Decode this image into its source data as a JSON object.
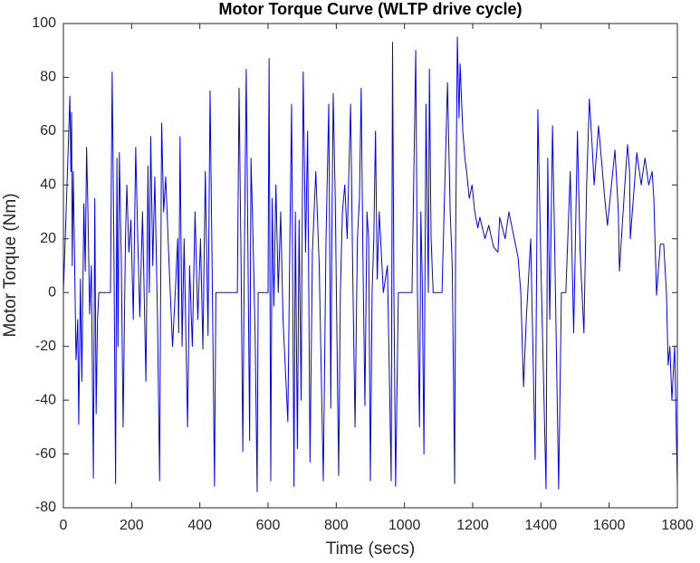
{
  "chart_data": {
    "type": "line",
    "title": "Motor Torque Curve (WLTP drive cycle)",
    "x_label": "Time (secs)",
    "y_label": "Motor Torque (Nm)",
    "color": "#0000ff",
    "xlim": [
      0,
      1800
    ],
    "xticks": [
      0,
      200,
      400,
      600,
      800,
      1000,
      1200,
      1400,
      1600,
      1800
    ],
    "ylim": [
      -80,
      100
    ],
    "yticks": [
      -80,
      -60,
      -40,
      -20,
      0,
      20,
      40,
      60,
      80,
      100
    ],
    "grid": false,
    "x": [
      0,
      8,
      19,
      22,
      24,
      26,
      29,
      33,
      37,
      42,
      45,
      50,
      54,
      60,
      64,
      68,
      72,
      77,
      82,
      88,
      92,
      96,
      100,
      104,
      138,
      143,
      148,
      153,
      157,
      160,
      164,
      170,
      175,
      182,
      186,
      192,
      198,
      205,
      212,
      218,
      224,
      232,
      242,
      248,
      252,
      256,
      262,
      268,
      276,
      282,
      288,
      294,
      300,
      310,
      320,
      328,
      335,
      338,
      342,
      348,
      354,
      364,
      370,
      378,
      386,
      394,
      402,
      409,
      416,
      424,
      430,
      436,
      443,
      447,
      510,
      515,
      521,
      526,
      531,
      536,
      540,
      546,
      550,
      556,
      562,
      568,
      571,
      600,
      603,
      608,
      612,
      617,
      623,
      630,
      637,
      644,
      658,
      664,
      669,
      676,
      680,
      686,
      691,
      697,
      703,
      710,
      716,
      723,
      730,
      740,
      750,
      762,
      770,
      778,
      784,
      787,
      791,
      797,
      807,
      812,
      818,
      825,
      832,
      842,
      848,
      855,
      862,
      868,
      873,
      878,
      884,
      890,
      895,
      900,
      905,
      910,
      915,
      920,
      926,
      938,
      950,
      961,
      965,
      969,
      974,
      982,
      1022,
      1033,
      1038,
      1044,
      1048,
      1052,
      1057,
      1063,
      1067,
      1070,
      1073,
      1078,
      1084,
      1110,
      1126,
      1134,
      1140,
      1147,
      1150,
      1155,
      1160,
      1163,
      1171,
      1177,
      1182,
      1190,
      1198,
      1206,
      1215,
      1221,
      1236,
      1247,
      1261,
      1274,
      1279,
      1295,
      1306,
      1322,
      1333,
      1341,
      1349,
      1357,
      1370,
      1383,
      1391,
      1400,
      1415,
      1420,
      1426,
      1434,
      1440,
      1452,
      1460,
      1473,
      1486,
      1496,
      1507,
      1515,
      1526,
      1534,
      1542,
      1550,
      1556,
      1569,
      1587,
      1595,
      1617,
      1627,
      1630,
      1646,
      1654,
      1660,
      1662,
      1681,
      1694,
      1705,
      1716,
      1726,
      1731,
      1739,
      1750,
      1760,
      1768,
      1773,
      1778,
      1784,
      1792,
      1800
    ],
    "values": [
      0,
      30,
      73,
      45,
      67,
      10,
      45,
      10,
      -25,
      -10,
      -49,
      5,
      -33,
      33,
      8,
      54,
      30,
      -8,
      10,
      -69,
      35,
      -45,
      -10,
      0,
      0,
      82,
      18,
      -71,
      50,
      -20,
      52,
      10,
      -50,
      20,
      40,
      15,
      27,
      -10,
      54,
      20,
      -9,
      30,
      -33,
      47,
      0,
      58,
      10,
      43,
      -10,
      -70,
      63,
      30,
      43,
      10,
      -20,
      0,
      20,
      -15,
      58,
      -20,
      20,
      -50,
      10,
      -20,
      30,
      -10,
      20,
      -21,
      45,
      -16,
      75,
      10,
      -72,
      0,
      0,
      76,
      10,
      -59,
      20,
      83,
      30,
      -55,
      50,
      20,
      -15,
      -74,
      0,
      0,
      87,
      -70,
      35,
      -5,
      40,
      0,
      30,
      -10,
      -48,
      20,
      70,
      -72,
      30,
      -58,
      27,
      -40,
      82,
      15,
      60,
      -63,
      15,
      45,
      10,
      -70,
      20,
      70,
      -43,
      20,
      74,
      35,
      -68,
      0,
      30,
      40,
      20,
      70,
      10,
      -50,
      20,
      35,
      76,
      15,
      -42,
      30,
      20,
      -70,
      0,
      20,
      60,
      5,
      30,
      0,
      10,
      -70,
      93,
      0,
      -72,
      0,
      0,
      90,
      0,
      -50,
      30,
      5,
      -60,
      70,
      30,
      0,
      83,
      20,
      0,
      0,
      78,
      30,
      10,
      -71,
      20,
      95,
      65,
      85,
      60,
      50,
      45,
      35,
      40,
      30,
      24,
      28,
      20,
      25,
      17,
      15,
      28,
      20,
      30,
      20,
      13,
      0,
      -35,
      -10,
      20,
      -62,
      68,
      10,
      -73,
      50,
      -10,
      62,
      20,
      -73,
      0,
      0,
      45,
      -15,
      60,
      15,
      -15,
      40,
      72,
      55,
      40,
      62,
      35,
      25,
      53,
      30,
      8,
      40,
      55,
      45,
      20,
      52,
      40,
      50,
      40,
      45,
      35,
      -1,
      18,
      18,
      0,
      -27,
      -20,
      -40,
      -20,
      -72
    ]
  }
}
